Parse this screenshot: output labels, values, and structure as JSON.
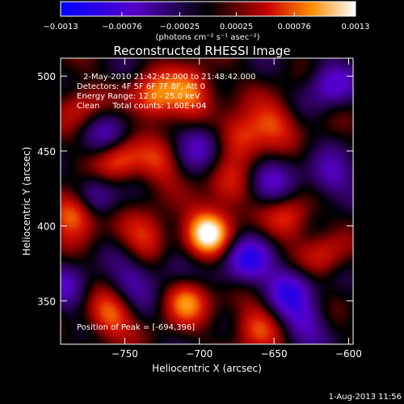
{
  "chart_data": {
    "type": "heatmap",
    "title": "Reconstructed RHESSI Image",
    "xlabel": "Heliocentric X (arcsec)",
    "ylabel": "Heliocentric Y (arcsec)",
    "xlim": [
      -793,
      -597
    ],
    "ylim": [
      321,
      512
    ],
    "x_ticks": [
      -750,
      -700,
      -650,
      -600
    ],
    "x_tick_labels": [
      "−750",
      "−700",
      "−650",
      "−600"
    ],
    "y_ticks": [
      350,
      400,
      450,
      500
    ],
    "y_tick_labels": [
      "350",
      "400",
      "450",
      "500"
    ],
    "colorbar": {
      "range": [
        -0.0013,
        0.0013
      ],
      "ticks": [
        -0.0013,
        -0.00076,
        -0.00025,
        0.00025,
        0.00076,
        0.0013
      ],
      "tick_labels": [
        "−0.0013",
        "−0.00076",
        "−0.00025",
        "0.00025",
        "0.00076",
        "0.0013"
      ],
      "unit_label": "(photons cm⁻² s⁻¹ asec⁻²)",
      "colors": [
        "#0000ff",
        "#5500c8",
        "#000000",
        "#c80000",
        "#ff8c00",
        "#ffffff"
      ]
    },
    "annotations": [
      "2-May-2010 21:42:42.000 to 21:48:42.000",
      "Detectors: 4F 5F 6F 7F 8F, Att 0",
      "Energy Range: 12.0 - 25.0 keV",
      "Clean     Total counts: 1.60E+04"
    ],
    "peak_label": "Position of Peak = [-694,396]",
    "peak": {
      "x": -694,
      "y": 396,
      "value": 0.0013
    },
    "sources": [
      {
        "x": -694,
        "y": 396,
        "value": 0.0013
      },
      {
        "x": -783,
        "y": 409,
        "value": 0.0011
      },
      {
        "x": -730,
        "y": 485,
        "value": 0.0009
      },
      {
        "x": -705,
        "y": 490,
        "value": 0.00085
      },
      {
        "x": -672,
        "y": 460,
        "value": 0.0008
      },
      {
        "x": -755,
        "y": 444,
        "value": 0.00075
      },
      {
        "x": -709,
        "y": 351,
        "value": 0.0009
      },
      {
        "x": -760,
        "y": 340,
        "value": 0.0008
      },
      {
        "x": -662,
        "y": 332,
        "value": 0.0007
      },
      {
        "x": -735,
        "y": 393,
        "value": 0.00065
      },
      {
        "x": -640,
        "y": 405,
        "value": 0.0006
      },
      {
        "x": -617,
        "y": 380,
        "value": 0.0005
      },
      {
        "x": -650,
        "y": 470,
        "value": 0.0006
      },
      {
        "x": -780,
        "y": 480,
        "value": 0.0005
      },
      {
        "x": -726,
        "y": 442,
        "value": 0.00055
      },
      {
        "x": -680,
        "y": 424,
        "value": 0.0005
      },
      {
        "x": -745,
        "y": 362,
        "value": -0.0005
      },
      {
        "x": -771,
        "y": 420,
        "value": -0.0007
      },
      {
        "x": -668,
        "y": 377,
        "value": -0.0009
      },
      {
        "x": -640,
        "y": 358,
        "value": -0.0008
      },
      {
        "x": -612,
        "y": 432,
        "value": -0.0006
      },
      {
        "x": -612,
        "y": 495,
        "value": -0.0007
      },
      {
        "x": -700,
        "y": 455,
        "value": -0.0006
      },
      {
        "x": -762,
        "y": 462,
        "value": -0.0005
      },
      {
        "x": -718,
        "y": 370,
        "value": -0.0004
      },
      {
        "x": -652,
        "y": 428,
        "value": -0.0005
      },
      {
        "x": -790,
        "y": 358,
        "value": -0.0005
      },
      {
        "x": -630,
        "y": 335,
        "value": -0.0006
      }
    ]
  },
  "footer_date": "1-Aug-2013 11:56"
}
